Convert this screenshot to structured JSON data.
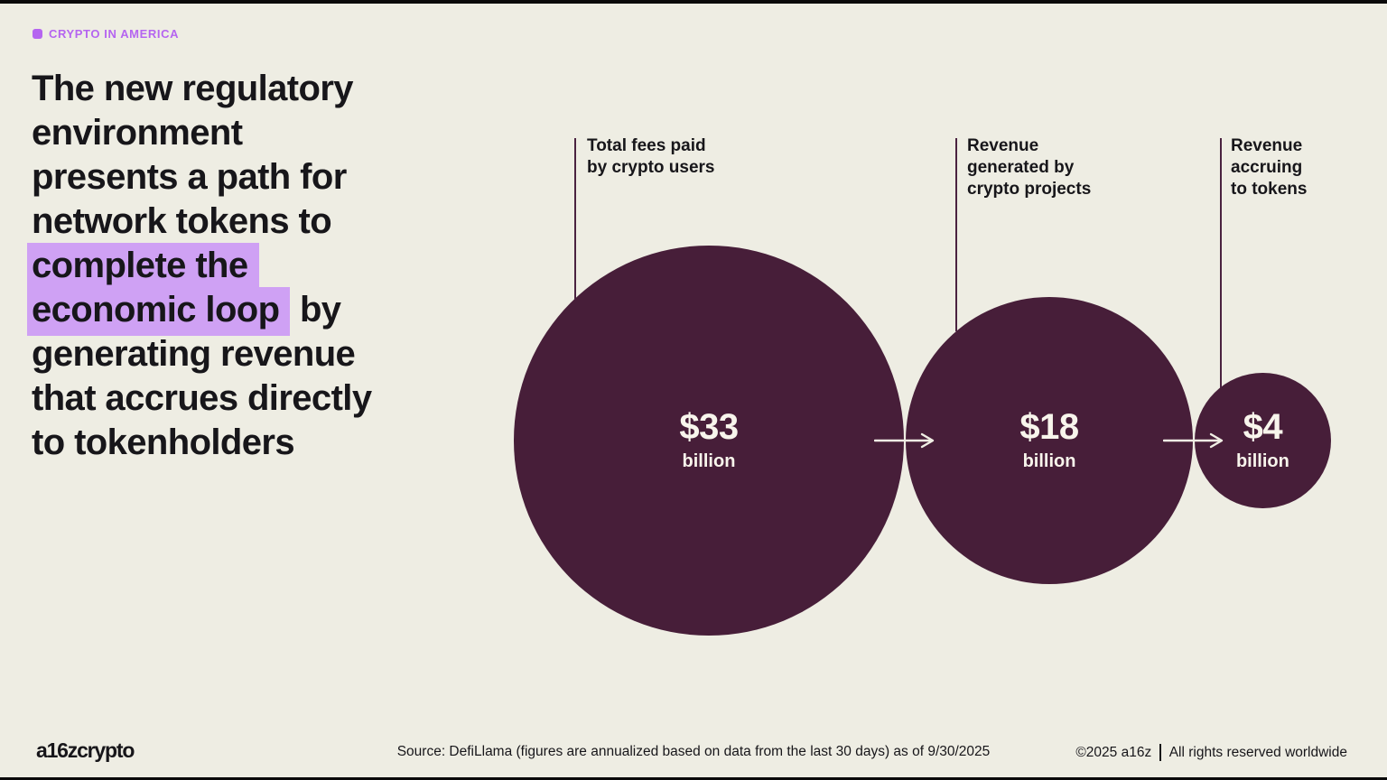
{
  "palette": {
    "bg": "#EEEDE3",
    "frame": "#0A0A0A",
    "ink": "#17161A",
    "accent": "#B565F0",
    "highlight": "#CFA1F4",
    "bubble": "#471E39",
    "bubbletext": "#F8F5EC",
    "line": "#4A2240",
    "arrow": "#F1EFE5"
  },
  "tag": {
    "label": "CRYPTO IN AMERICA"
  },
  "headline": {
    "full_text": "The new regulatory environment presents a path for network tokens to complete the economic loop by generating revenue that accrues directly to tokenholders",
    "lines": [
      {
        "segments": [
          {
            "text": "The new regulatory",
            "highlight": false
          }
        ]
      },
      {
        "segments": [
          {
            "text": "environment",
            "highlight": false
          }
        ]
      },
      {
        "segments": [
          {
            "text": "presents a path for",
            "highlight": false
          }
        ]
      },
      {
        "segments": [
          {
            "text": "network tokens to",
            "highlight": false
          }
        ]
      },
      {
        "segments": [
          {
            "text": "complete the",
            "highlight": true
          }
        ]
      },
      {
        "segments": [
          {
            "text": "economic loop",
            "highlight": true
          },
          {
            "text": " by",
            "highlight": false
          }
        ]
      },
      {
        "segments": [
          {
            "text": "generating revenue",
            "highlight": false
          }
        ]
      },
      {
        "segments": [
          {
            "text": "that accrues directly",
            "highlight": false
          }
        ]
      },
      {
        "segments": [
          {
            "text": "to tokenholders",
            "highlight": false
          }
        ]
      }
    ]
  },
  "chart_data": {
    "type": "bubble",
    "title": "",
    "flow": "left-to-right",
    "layout_hint": "three dark circles sized by sqrt(value), tangent in a row, arrows between them, leader line from each label down to circle edge",
    "nodes": [
      {
        "label": "Total fees paid by crypto users",
        "label_lines": [
          "Total fees paid",
          "by crypto users"
        ],
        "value": 33,
        "value_display": "$33",
        "unit_display": "billion"
      },
      {
        "label": "Revenue generated by crypto projects",
        "label_lines": [
          "Revenue",
          "generated by",
          "crypto projects"
        ],
        "value": 18,
        "value_display": "$18",
        "unit_display": "billion"
      },
      {
        "label": "Revenue accruing to tokens",
        "label_lines": [
          "Revenue",
          "accruing",
          "to tokens"
        ],
        "value": 4,
        "value_display": "$4",
        "unit_display": "billion"
      }
    ]
  },
  "footer": {
    "logo": "a16zcrypto",
    "source": "Source: DefiLlama (figures are annualized based on data from the last 30 days) as of 9/30/2025",
    "copyright": "©2025 a16z",
    "rights": "All rights reserved worldwide"
  }
}
